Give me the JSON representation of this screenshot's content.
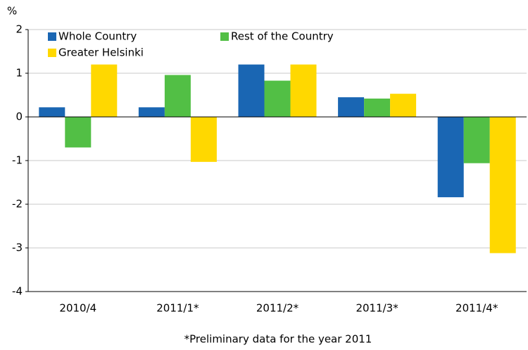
{
  "chart_data": {
    "type": "bar",
    "y_label": "%",
    "x_label": "*Preliminary data for the year 2011",
    "categories": [
      "2010/4",
      "2011/1*",
      "2011/2*",
      "2011/3*",
      "2011/4*"
    ],
    "series": [
      {
        "name": "Whole Country",
        "color": "#1a66b3",
        "values": [
          0.22,
          0.22,
          1.2,
          0.45,
          -1.84
        ]
      },
      {
        "name": "Rest of the Country",
        "color": "#52bf45",
        "values": [
          -0.7,
          0.96,
          0.83,
          0.42,
          -1.06
        ]
      },
      {
        "name": "Greater Helsinki",
        "color": "#ffd800",
        "values": [
          1.2,
          -1.03,
          1.2,
          0.53,
          -3.12
        ]
      }
    ],
    "ylim": [
      -4,
      2
    ],
    "yticks": [
      -4,
      -3,
      -2,
      -1,
      0,
      1,
      2
    ],
    "grid": true
  }
}
